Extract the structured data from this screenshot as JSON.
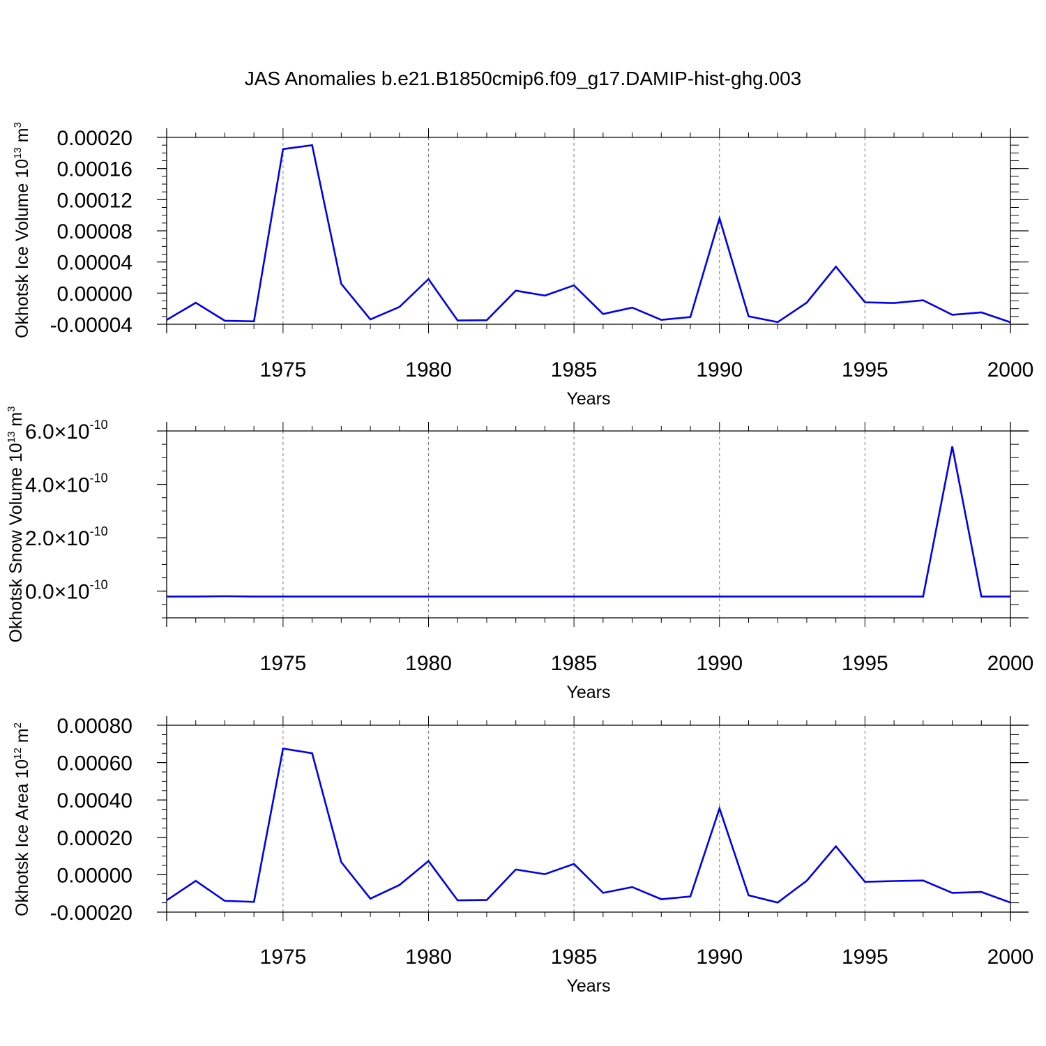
{
  "title": "JAS Anomalies b.e21.B1850cmip6.f09_g17.DAMIP-hist-ghg.003",
  "chart_data": [
    {
      "type": "line",
      "name": "ice-volume",
      "ylabel": {
        "main": "Okhotsk Ice Volume 10",
        "sup": "13",
        "unit": " m",
        "unit_sup": "3"
      },
      "xlabel": "Years",
      "xlim": [
        1971,
        2000
      ],
      "ylim": [
        -4e-05,
        0.0002
      ],
      "x_ticks": [
        1975,
        1980,
        1985,
        1990,
        1995,
        2000
      ],
      "x_tick_labels": [
        "1975",
        "1980",
        "1985",
        "1990",
        "1995",
        "2000"
      ],
      "y_ticks": [
        -4e-05,
        0.0,
        4e-05,
        8e-05,
        0.00012,
        0.00016,
        0.0002
      ],
      "y_tick_labels": [
        "-0.00004",
        "0.00000",
        "0.00004",
        "0.00008",
        "0.00012",
        "0.00016",
        "0.00020"
      ],
      "grid": "vertical dashed at 1975, 1980, 1985, 1990, 1995",
      "series": [
        {
          "name": "anomaly",
          "color": "#0000ee",
          "x": [
            1971,
            1972,
            1973,
            1974,
            1975,
            1976,
            1977,
            1978,
            1979,
            1980,
            1981,
            1982,
            1983,
            1984,
            1985,
            1986,
            1987,
            1988,
            1989,
            1990,
            1991,
            1992,
            1993,
            1994,
            1995,
            1996,
            1997,
            1998,
            1999,
            2000
          ],
          "values": [
            -3.44e-05,
            -1.24e-05,
            -3.54e-05,
            -3.62e-05,
            0.000185,
            0.00019,
            1.2e-05,
            -3.38e-05,
            -1.78e-05,
            1.8e-05,
            -3.52e-05,
            -3.48e-05,
            3.2e-06,
            -3.2e-06,
            1e-05,
            -2.68e-05,
            -1.86e-05,
            -3.44e-05,
            -3.08e-05,
            9.6e-05,
            -2.98e-05,
            -3.72e-05,
            -1.22e-05,
            3.4e-05,
            -1.18e-05,
            -1.28e-05,
            -9.2e-06,
            -2.78e-05,
            -2.48e-05,
            -3.74e-05
          ]
        }
      ]
    },
    {
      "type": "line",
      "name": "snow-volume",
      "ylabel": {
        "main": "Okhotsk Snow Volume 10",
        "sup": "13",
        "unit": " m",
        "unit_sup": "3"
      },
      "xlabel": "Years",
      "xlim": [
        1971,
        2000
      ],
      "ylim": [
        -1e-10,
        6e-10
      ],
      "x_ticks": [
        1975,
        1980,
        1985,
        1990,
        1995,
        2000
      ],
      "x_tick_labels": [
        "1975",
        "1980",
        "1985",
        "1990",
        "1995",
        "2000"
      ],
      "y_ticks": [
        0,
        2e-10,
        4e-10,
        6e-10
      ],
      "y_tick_labels": [
        {
          "mantissa": "0.0",
          "times": "×",
          "base": "10",
          "exp": "-10"
        },
        {
          "mantissa": "2.0",
          "times": "×",
          "base": "10",
          "exp": "-10"
        },
        {
          "mantissa": "4.0",
          "times": "×",
          "base": "10",
          "exp": "-10"
        },
        {
          "mantissa": "6.0",
          "times": "×",
          "base": "10",
          "exp": "-10"
        }
      ],
      "grid": "vertical dashed at 1975, 1980, 1985, 1990, 1995",
      "series": [
        {
          "name": "anomaly",
          "color": "#0000ee",
          "x": [
            1971,
            1972,
            1973,
            1974,
            1975,
            1976,
            1977,
            1978,
            1979,
            1980,
            1981,
            1982,
            1983,
            1984,
            1985,
            1986,
            1987,
            1988,
            1989,
            1990,
            1991,
            1992,
            1993,
            1994,
            1995,
            1996,
            1997,
            1998,
            1999,
            2000
          ],
          "values": [
            -2e-11,
            -2e-11,
            -1.9e-11,
            -2e-11,
            -2e-11,
            -2e-11,
            -2e-11,
            -2e-11,
            -2e-11,
            -2e-11,
            -2e-11,
            -2e-11,
            -2e-11,
            -2e-11,
            -2e-11,
            -2e-11,
            -2e-11,
            -2e-11,
            -2e-11,
            -2e-11,
            -2e-11,
            -2e-11,
            -2e-11,
            -2e-11,
            -2e-11,
            -2e-11,
            -2e-11,
            5.42e-10,
            -2e-11,
            -2e-11
          ]
        }
      ]
    },
    {
      "type": "line",
      "name": "ice-area",
      "ylabel": {
        "main": "Okhotsk Ice Area 10",
        "sup": "12",
        "unit": " m",
        "unit_sup": "2"
      },
      "xlabel": "Years",
      "xlim": [
        1971,
        2000
      ],
      "ylim": [
        -0.0002,
        0.0008
      ],
      "x_ticks": [
        1975,
        1980,
        1985,
        1990,
        1995,
        2000
      ],
      "x_tick_labels": [
        "1975",
        "1980",
        "1985",
        "1990",
        "1995",
        "2000"
      ],
      "y_ticks": [
        -0.0002,
        0.0,
        0.0002,
        0.0004,
        0.0006,
        0.0008
      ],
      "y_tick_labels": [
        "-0.00020",
        "0.00000",
        "0.00020",
        "0.00040",
        "0.00060",
        "0.00080"
      ],
      "grid": "vertical dashed at 1975, 1980, 1985, 1990, 1995",
      "series": [
        {
          "name": "anomaly",
          "color": "#0000ee",
          "x": [
            1971,
            1972,
            1973,
            1974,
            1975,
            1976,
            1977,
            1978,
            1979,
            1980,
            1981,
            1982,
            1983,
            1984,
            1985,
            1986,
            1987,
            1988,
            1989,
            1990,
            1991,
            1992,
            1993,
            1994,
            1995,
            1996,
            1997,
            1998,
            1999,
            2000
          ],
          "values": [
            -0.000137,
            -3.3e-05,
            -0.00014,
            -0.000145,
            0.000675,
            0.00065,
            6.8e-05,
            -0.000128,
            -5.5e-05,
            7.3e-05,
            -0.000137,
            -0.000135,
            2.8e-05,
            3e-06,
            5.8e-05,
            -9.7e-05,
            -6.6e-05,
            -0.000131,
            -0.000116,
            0.000355,
            -0.00011,
            -0.000149,
            -3.2e-05,
            0.000152,
            -3.8e-05,
            -3.4e-05,
            -3.1e-05,
            -9.7e-05,
            -9.2e-05,
            -0.000149
          ]
        }
      ]
    }
  ]
}
